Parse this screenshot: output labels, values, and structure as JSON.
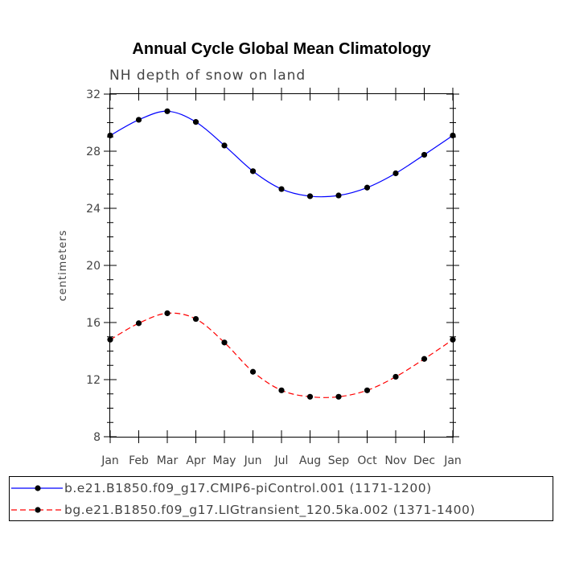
{
  "chart_data": {
    "type": "line",
    "title": "Annual Cycle Global Mean Climatology",
    "subtitle": "NH depth of snow on land",
    "xlabel": "",
    "ylabel": "centimeters",
    "categories": [
      "Jan",
      "Feb",
      "Mar",
      "Apr",
      "May",
      "Jun",
      "Jul",
      "Aug",
      "Sep",
      "Oct",
      "Nov",
      "Dec",
      "Jan"
    ],
    "ylim": [
      8,
      32
    ],
    "yticks": [
      8,
      12,
      16,
      20,
      24,
      28,
      32
    ],
    "series": [
      {
        "name": "b.e21.B1850.f09_g17.CMIP6-piControl.001 (1171-1200)",
        "color": "#0000ff",
        "dash": "solid",
        "values": [
          29.1,
          30.2,
          30.8,
          30.05,
          28.4,
          26.6,
          25.35,
          24.85,
          24.9,
          25.45,
          26.45,
          27.75,
          29.1
        ]
      },
      {
        "name": "bg.e21.B1850.f09_g17.LIGtransient_120.5ka.002 (1371-1400)",
        "color": "#ff0000",
        "dash": "dashed",
        "values": [
          14.8,
          15.95,
          16.65,
          16.25,
          14.6,
          12.55,
          11.25,
          10.8,
          10.8,
          11.25,
          12.2,
          13.45,
          14.8
        ]
      }
    ],
    "grid": false,
    "legend_position": "bottom"
  }
}
